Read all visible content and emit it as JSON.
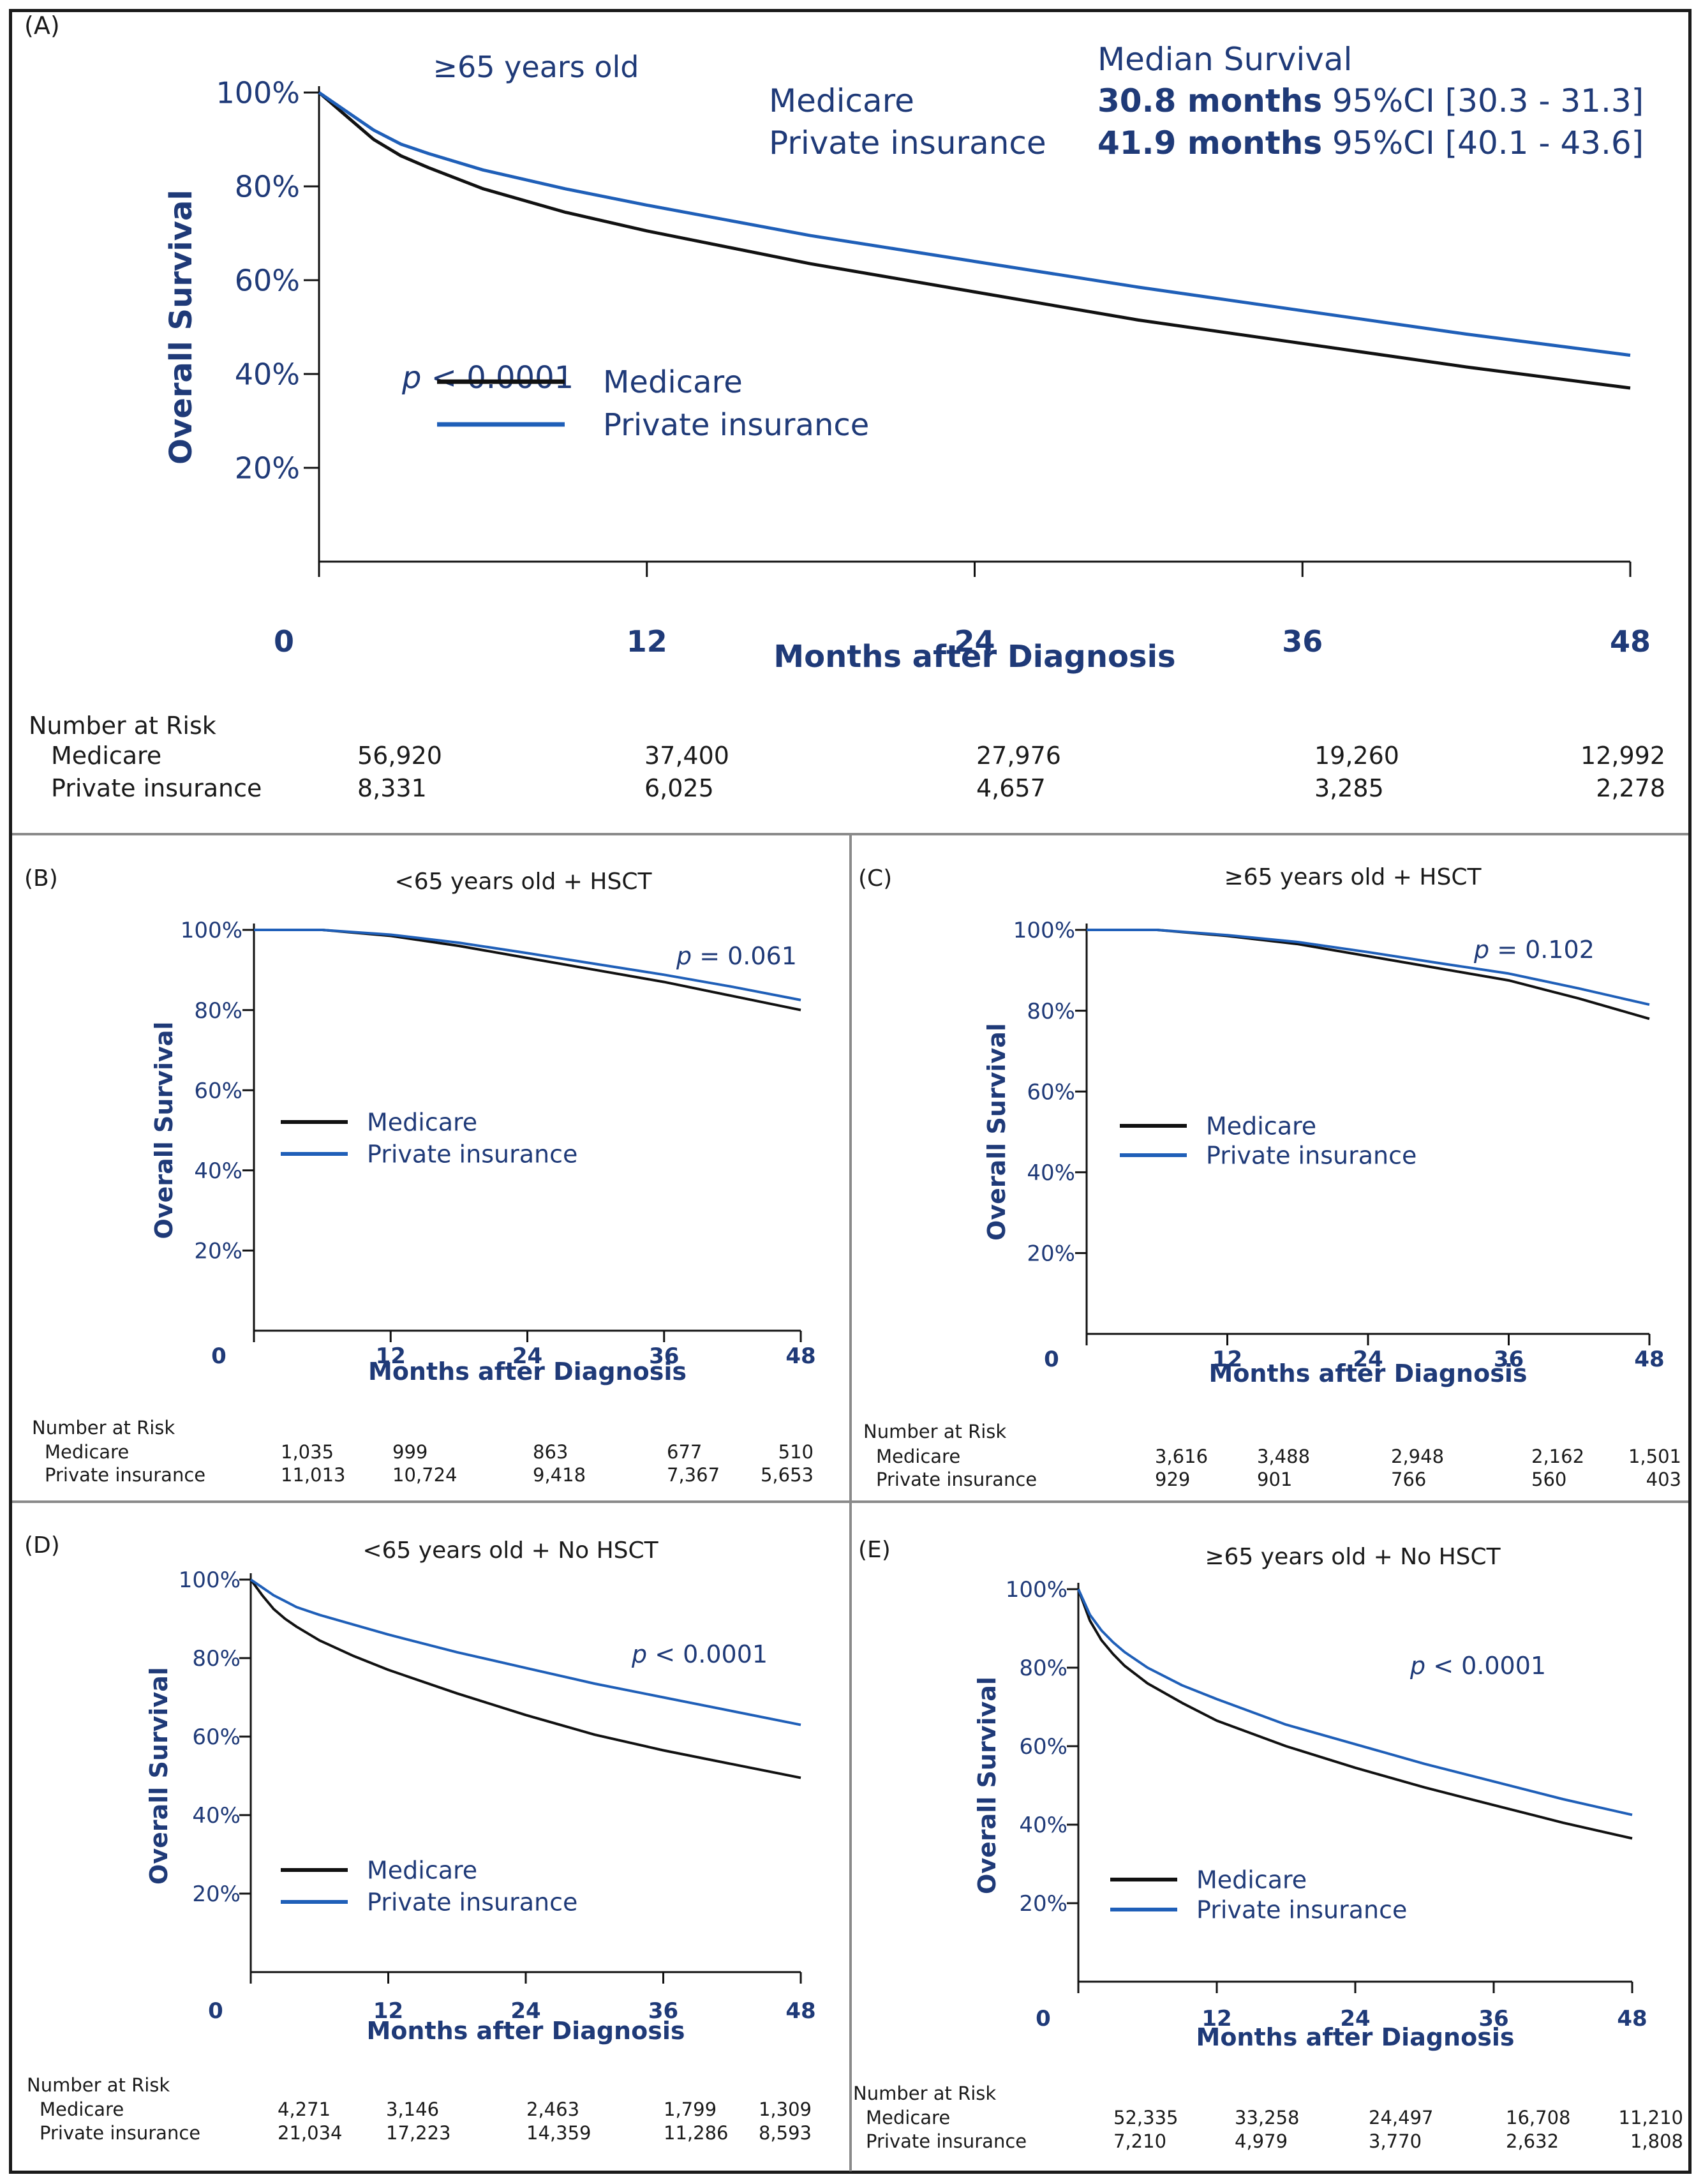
{
  "chart_data": [
    {
      "id": "A",
      "type": "line",
      "panel_label": "(A)",
      "title": "≥65 years old",
      "xlabel": "Months after Diagnosis",
      "ylabel": "Overall Survival",
      "xlim": [
        0,
        48
      ],
      "ylim": [
        0,
        100
      ],
      "x_ticks": [
        "0",
        "12",
        "24",
        "36",
        "48"
      ],
      "y_ticks": [
        "20%",
        "40%",
        "60%",
        "80%",
        "100%"
      ],
      "p_value_prefix": "p",
      "p_value_rest": " < 0.0001",
      "legend": [
        "Medicare",
        "Private insurance"
      ],
      "median_survival": {
        "heading": "Median Survival",
        "rows": [
          {
            "name": "Medicare",
            "months": "30.8 months",
            "ci": " 95%CI [30.3 - 31.3]"
          },
          {
            "name": "Private insurance",
            "months": "41.9 months",
            "ci": " 95%CI [40.1 - 43.6]"
          }
        ]
      },
      "series": [
        {
          "name": "Medicare",
          "color": "#111111",
          "x": [
            0,
            1,
            2,
            3,
            4,
            6,
            9,
            12,
            18,
            24,
            30,
            36,
            42,
            48
          ],
          "values": [
            100,
            95,
            90,
            86.5,
            84,
            79.5,
            74.5,
            70.5,
            63.5,
            57.5,
            51.5,
            46.5,
            41.5,
            37
          ]
        },
        {
          "name": "Private insurance",
          "color": "#1f5fb8",
          "x": [
            0,
            1,
            2,
            3,
            4,
            6,
            9,
            12,
            18,
            24,
            30,
            36,
            42,
            48
          ],
          "values": [
            100,
            96,
            92,
            89,
            87,
            83.5,
            79.5,
            76,
            69.5,
            64,
            58.5,
            53.5,
            48.5,
            44
          ]
        }
      ],
      "risk": {
        "title": "Number at Risk",
        "rows": [
          {
            "name": "Medicare",
            "values": [
              "56,920",
              "37,400",
              "27,976",
              "19,260",
              "12,992"
            ]
          },
          {
            "name": "Private insurance",
            "values": [
              "8,331",
              "6,025",
              "4,657",
              "3,285",
              "2,278"
            ]
          }
        ]
      }
    },
    {
      "id": "B",
      "type": "line",
      "panel_label": "(B)",
      "title": "<65 years old + HSCT",
      "xlabel": "Months after Diagnosis",
      "ylabel": "Overall Survival",
      "xlim": [
        0,
        48
      ],
      "ylim": [
        0,
        100
      ],
      "x_ticks": [
        "0",
        "12",
        "24",
        "36",
        "48"
      ],
      "y_ticks": [
        "20%",
        "40%",
        "60%",
        "80%",
        "100%"
      ],
      "p_value_prefix": "p",
      "p_value_rest": " = 0.061",
      "legend": [
        "Medicare",
        "Private insurance"
      ],
      "series": [
        {
          "name": "Medicare",
          "color": "#111111",
          "x": [
            0,
            6,
            12,
            18,
            24,
            30,
            36,
            42,
            48
          ],
          "values": [
            100,
            100,
            98.5,
            96,
            93,
            90,
            87,
            83.5,
            80
          ]
        },
        {
          "name": "Private insurance",
          "color": "#1f5fb8",
          "x": [
            0,
            6,
            12,
            18,
            24,
            30,
            36,
            42,
            48
          ],
          "values": [
            100,
            100,
            98.8,
            96.8,
            94.2,
            91.5,
            88.8,
            85.8,
            82.5
          ]
        }
      ],
      "risk": {
        "title": "Number at Risk",
        "rows": [
          {
            "name": "Medicare",
            "values": [
              "1,035",
              "999",
              "863",
              "677",
              "510"
            ]
          },
          {
            "name": "Private insurance",
            "values": [
              "11,013",
              "10,724",
              "9,418",
              "7,367",
              "5,653"
            ]
          }
        ]
      }
    },
    {
      "id": "C",
      "type": "line",
      "panel_label": "(C)",
      "title": "≥65 years old + HSCT",
      "xlabel": "Months after Diagnosis",
      "ylabel": "Overall Survival",
      "xlim": [
        0,
        48
      ],
      "ylim": [
        0,
        100
      ],
      "x_ticks": [
        "0",
        "12",
        "24",
        "36",
        "48"
      ],
      "y_ticks": [
        "20%",
        "40%",
        "60%",
        "80%",
        "100%"
      ],
      "p_value_prefix": "p",
      "p_value_rest": " = 0.102",
      "legend": [
        "Medicare",
        "Private insurance"
      ],
      "series": [
        {
          "name": "Medicare",
          "color": "#111111",
          "x": [
            0,
            6,
            12,
            18,
            24,
            30,
            36,
            42,
            48
          ],
          "values": [
            100,
            100,
            98.5,
            96.5,
            93.5,
            90.5,
            87.5,
            83,
            78
          ]
        },
        {
          "name": "Private insurance",
          "color": "#1f5fb8",
          "x": [
            0,
            6,
            12,
            18,
            24,
            30,
            36,
            42,
            48
          ],
          "values": [
            100,
            100,
            98.7,
            97,
            94.5,
            91.8,
            89.2,
            85.5,
            81.5
          ]
        }
      ],
      "risk": {
        "title": "Number at Risk",
        "rows": [
          {
            "name": "Medicare",
            "values": [
              "3,616",
              "3,488",
              "2,948",
              "2,162",
              "1,501"
            ]
          },
          {
            "name": "Private insurance",
            "values": [
              "929",
              "901",
              "766",
              "560",
              "403"
            ]
          }
        ]
      }
    },
    {
      "id": "D",
      "type": "line",
      "panel_label": "(D)",
      "title": "<65 years old + No HSCT",
      "xlabel": "Months after Diagnosis",
      "ylabel": "Overall Survival",
      "xlim": [
        0,
        48
      ],
      "ylim": [
        0,
        100
      ],
      "x_ticks": [
        "0",
        "12",
        "24",
        "36",
        "48"
      ],
      "y_ticks": [
        "20%",
        "40%",
        "60%",
        "80%",
        "100%"
      ],
      "p_value_prefix": "p",
      "p_value_rest": " < 0.0001",
      "legend": [
        "Medicare",
        "Private insurance"
      ],
      "series": [
        {
          "name": "Medicare",
          "color": "#111111",
          "x": [
            0,
            1,
            2,
            3,
            4,
            6,
            9,
            12,
            18,
            24,
            30,
            36,
            42,
            48
          ],
          "values": [
            100,
            96,
            92.5,
            90,
            88,
            84.5,
            80.5,
            77,
            71,
            65.5,
            60.5,
            56.5,
            53,
            49.5
          ]
        },
        {
          "name": "Private insurance",
          "color": "#1f5fb8",
          "x": [
            0,
            1,
            2,
            3,
            4,
            6,
            9,
            12,
            18,
            24,
            30,
            36,
            42,
            48
          ],
          "values": [
            100,
            98,
            96,
            94.5,
            93,
            91,
            88.5,
            86,
            81.5,
            77.5,
            73.5,
            70,
            66.5,
            63
          ]
        }
      ],
      "risk": {
        "title": "Number at Risk",
        "rows": [
          {
            "name": "Medicare",
            "values": [
              "4,271",
              "3,146",
              "2,463",
              "1,799",
              "1,309"
            ]
          },
          {
            "name": "Private insurance",
            "values": [
              "21,034",
              "17,223",
              "14,359",
              "11,286",
              "8,593"
            ]
          }
        ]
      }
    },
    {
      "id": "E",
      "type": "line",
      "panel_label": "(E)",
      "title": "≥65 years old + No HSCT",
      "xlabel": "Months after Diagnosis",
      "ylabel": "Overall Survival",
      "xlim": [
        0,
        48
      ],
      "ylim": [
        0,
        100
      ],
      "x_ticks": [
        "0",
        "12",
        "24",
        "36",
        "48"
      ],
      "y_ticks": [
        "20%",
        "40%",
        "60%",
        "80%",
        "100%"
      ],
      "p_value_prefix": "p",
      "p_value_rest": " < 0.0001",
      "legend": [
        "Medicare",
        "Private insurance"
      ],
      "series": [
        {
          "name": "Medicare",
          "color": "#111111",
          "x": [
            0,
            1,
            2,
            3,
            4,
            6,
            9,
            12,
            18,
            24,
            30,
            36,
            42,
            48
          ],
          "values": [
            100,
            92,
            87,
            83.5,
            80.5,
            76,
            71,
            66.5,
            60,
            54.5,
            49.5,
            45,
            40.5,
            36.5
          ]
        },
        {
          "name": "Private insurance",
          "color": "#1f5fb8",
          "x": [
            0,
            1,
            2,
            3,
            4,
            6,
            9,
            12,
            18,
            24,
            30,
            36,
            42,
            48
          ],
          "values": [
            100,
            93.5,
            89.5,
            86.5,
            84,
            80,
            75.5,
            72,
            65.5,
            60.5,
            55.5,
            51,
            46.5,
            42.5
          ]
        }
      ],
      "risk": {
        "title": "Number at Risk",
        "rows": [
          {
            "name": "Medicare",
            "values": [
              "52,335",
              "33,258",
              "24,497",
              "16,708",
              "11,210"
            ]
          },
          {
            "name": "Private insurance",
            "values": [
              "7,210",
              "4,979",
              "3,770",
              "2,632",
              "1,808"
            ]
          }
        ]
      }
    }
  ]
}
